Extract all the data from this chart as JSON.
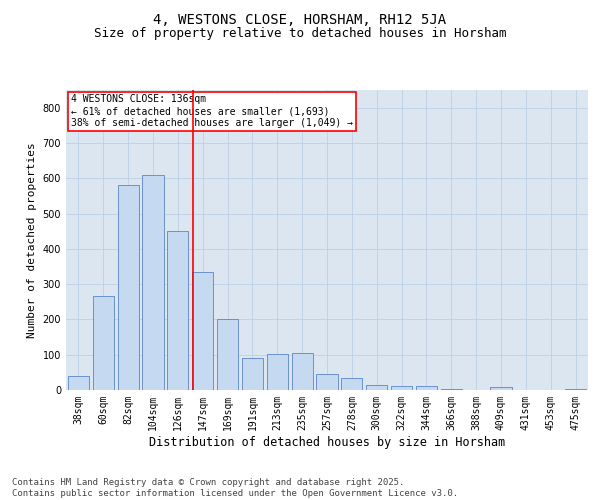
{
  "title": "4, WESTONS CLOSE, HORSHAM, RH12 5JA",
  "subtitle": "Size of property relative to detached houses in Horsham",
  "xlabel": "Distribution of detached houses by size in Horsham",
  "ylabel": "Number of detached properties",
  "categories": [
    "38sqm",
    "60sqm",
    "82sqm",
    "104sqm",
    "126sqm",
    "147sqm",
    "169sqm",
    "191sqm",
    "213sqm",
    "235sqm",
    "257sqm",
    "278sqm",
    "300sqm",
    "322sqm",
    "344sqm",
    "366sqm",
    "388sqm",
    "409sqm",
    "431sqm",
    "453sqm",
    "475sqm"
  ],
  "values": [
    40,
    265,
    580,
    610,
    450,
    335,
    200,
    90,
    103,
    105,
    45,
    35,
    15,
    12,
    10,
    2,
    0,
    8,
    0,
    0,
    3
  ],
  "bar_color": "#c5d9f1",
  "bar_edge_color": "#4472c4",
  "grid_color": "#b8cce4",
  "background_color": "#dce6f1",
  "vline_x": 4.6,
  "vline_color": "#ff0000",
  "annotation_line1": "4 WESTONS CLOSE: 136sqm",
  "annotation_line2": "← 61% of detached houses are smaller (1,693)",
  "annotation_line3": "38% of semi-detached houses are larger (1,049) →",
  "annotation_box_color": "#ffffff",
  "annotation_box_edge": "#ff0000",
  "footer_text": "Contains HM Land Registry data © Crown copyright and database right 2025.\nContains public sector information licensed under the Open Government Licence v3.0.",
  "ylim": [
    0,
    850
  ],
  "yticks": [
    0,
    100,
    200,
    300,
    400,
    500,
    600,
    700,
    800
  ],
  "title_fontsize": 10,
  "subtitle_fontsize": 9,
  "xlabel_fontsize": 8.5,
  "ylabel_fontsize": 8,
  "tick_fontsize": 7,
  "footer_fontsize": 6.5,
  "annotation_fontsize": 7
}
